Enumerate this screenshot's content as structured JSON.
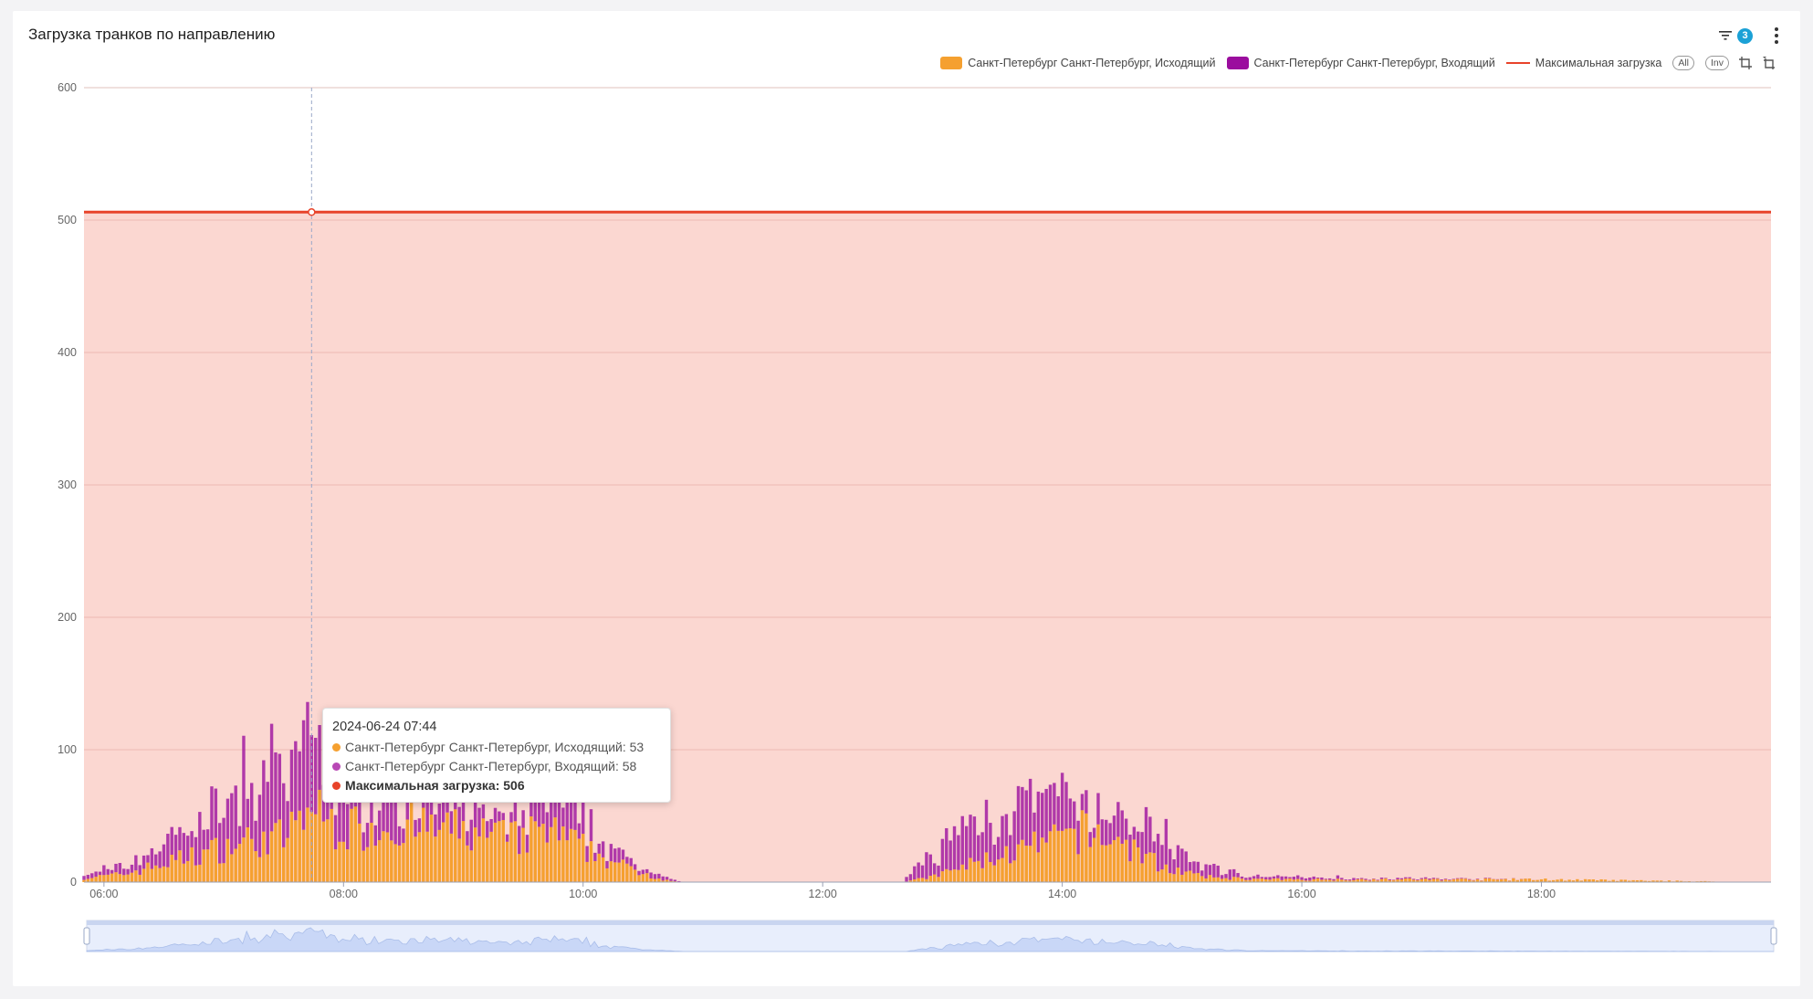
{
  "card": {
    "title": "Загрузка транков по направлению"
  },
  "toolbar": {
    "filter_count": "3"
  },
  "legend": {
    "items": [
      {
        "label": "Санкт-Петербург Санкт-Петербург, Исходящий",
        "color": "#f5a030"
      },
      {
        "label": "Санкт-Петербург Санкт-Петербург, Входящий",
        "color": "#9b0d9e"
      },
      {
        "label": "Максимальная загрузка",
        "color": "#e8432a"
      }
    ],
    "all_label": "All",
    "inv_label": "Inv"
  },
  "tooltip": {
    "time": "2024-06-24 07:44",
    "rows": [
      {
        "label": "Санкт-Петербург Санкт-Петербург, Исходящий: 53",
        "color": "#f5a030"
      },
      {
        "label": "Санкт-Петербург Санкт-Петербург, Входящий: 58",
        "color": "#b848b5"
      },
      {
        "label": "Максимальная загрузка: 506",
        "color": "#e8432a"
      }
    ]
  },
  "chart_data": {
    "type": "bar",
    "title": "",
    "xlabel": "",
    "ylabel": "",
    "ylim": [
      0,
      600
    ],
    "y_ticks": [
      0,
      100,
      200,
      300,
      400,
      500,
      600
    ],
    "x_range": [
      "05:50",
      "19:55"
    ],
    "x_ticks": [
      "06:00",
      "08:00",
      "10:00",
      "12:00",
      "14:00",
      "16:00",
      "18:00"
    ],
    "grid": true,
    "legend_position": "top-right",
    "stacked": true,
    "max_load": 506,
    "colors": {
      "outgoing": "#f5a030",
      "incoming": "#9b0d9e",
      "max_line": "#e8432a",
      "max_area": "#fbd7d1"
    },
    "bin_minutes": 2,
    "series": [
      {
        "name": "Санкт-Петербург Санкт-Петербург, Исходящий",
        "time_value_profile": [
          [
            "05:50",
            3
          ],
          [
            "06:10",
            6
          ],
          [
            "06:30",
            14
          ],
          [
            "06:50",
            22
          ],
          [
            "07:10",
            30
          ],
          [
            "07:30",
            34
          ],
          [
            "07:44",
            53
          ],
          [
            "08:00",
            40
          ],
          [
            "08:30",
            42
          ],
          [
            "09:00",
            38
          ],
          [
            "09:30",
            32
          ],
          [
            "09:40",
            40
          ],
          [
            "10:00",
            26
          ],
          [
            "10:20",
            12
          ],
          [
            "10:40",
            2
          ],
          [
            "10:50",
            0
          ],
          [
            "12:40",
            0
          ],
          [
            "12:55",
            4
          ],
          [
            "13:20",
            16
          ],
          [
            "13:50",
            28
          ],
          [
            "14:10",
            38
          ],
          [
            "14:30",
            30
          ],
          [
            "14:50",
            12
          ],
          [
            "15:10",
            4
          ],
          [
            "15:40",
            2
          ],
          [
            "16:30",
            2
          ],
          [
            "18:00",
            2
          ],
          [
            "19:55",
            0
          ]
        ]
      },
      {
        "name": "Санкт-Петербург Санкт-Петербург, Входящий",
        "time_value_profile": [
          [
            "05:50",
            2
          ],
          [
            "06:10",
            6
          ],
          [
            "06:30",
            16
          ],
          [
            "06:50",
            26
          ],
          [
            "07:10",
            34
          ],
          [
            "07:30",
            38
          ],
          [
            "07:44",
            58
          ],
          [
            "08:00",
            26
          ],
          [
            "08:30",
            22
          ],
          [
            "09:00",
            16
          ],
          [
            "09:30",
            12
          ],
          [
            "09:40",
            36
          ],
          [
            "10:00",
            18
          ],
          [
            "10:20",
            6
          ],
          [
            "10:40",
            2
          ],
          [
            "10:50",
            0
          ],
          [
            "12:40",
            0
          ],
          [
            "12:55",
            18
          ],
          [
            "13:20",
            34
          ],
          [
            "13:50",
            32
          ],
          [
            "14:10",
            16
          ],
          [
            "14:30",
            18
          ],
          [
            "14:50",
            18
          ],
          [
            "15:10",
            8
          ],
          [
            "15:40",
            2
          ],
          [
            "16:30",
            1
          ],
          [
            "18:00",
            0
          ],
          [
            "19:55",
            0
          ]
        ]
      },
      {
        "name": "Максимальная загрузка",
        "time_value_profile": [
          [
            "05:50",
            506
          ],
          [
            "19:55",
            506
          ]
        ]
      }
    ]
  }
}
